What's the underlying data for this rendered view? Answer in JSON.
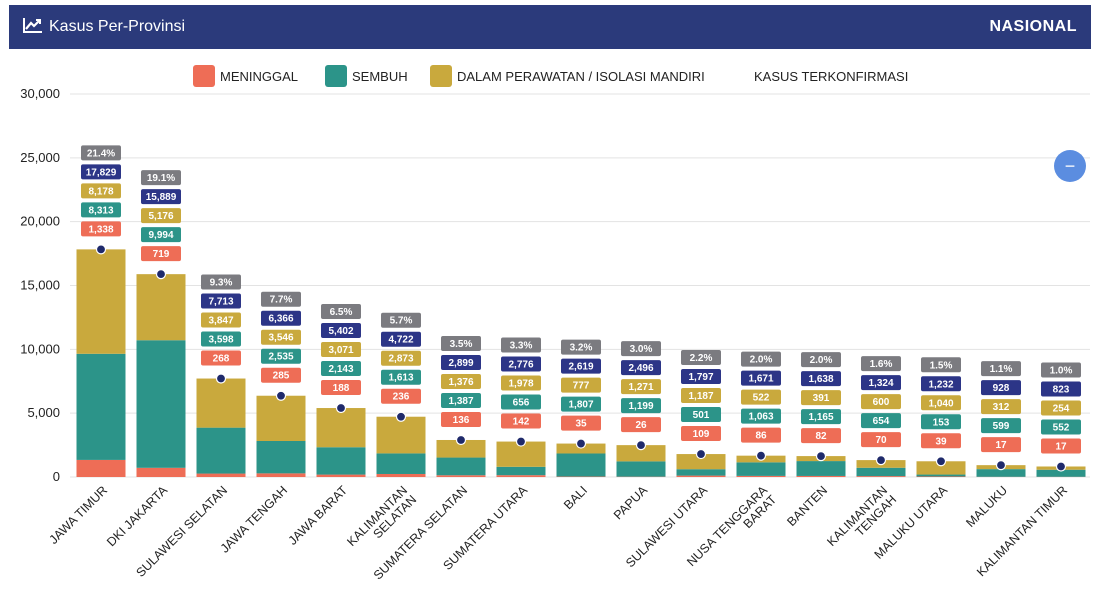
{
  "header": {
    "title": "Kasus Per-Provinsi",
    "scope": "NASIONAL",
    "icon": "line-chart-icon"
  },
  "zoom_button": {
    "label": "−",
    "icon": "minus-icon"
  },
  "colors": {
    "meninggal": "#ee6d56",
    "sembuh": "#2c9489",
    "perawatan": "#c9a93d",
    "konfirmasi": "#2c3587",
    "percent": "#7b7b80",
    "dot": "#1f2a6b",
    "header": "#2b3a7b"
  },
  "chart_data": {
    "type": "bar",
    "stacked": true,
    "title": "",
    "ylim": [
      0,
      30000
    ],
    "yticks": [
      {
        "value": 0,
        "label": "0"
      },
      {
        "value": 5000,
        "label": "5,000"
      },
      {
        "value": 10000,
        "label": "10,000"
      },
      {
        "value": 15000,
        "label": "15,000"
      },
      {
        "value": 20000,
        "label": "20,000"
      },
      {
        "value": 25000,
        "label": "25,000"
      },
      {
        "value": 30000,
        "label": "30,000"
      }
    ],
    "grid": true,
    "legend_position": "top-center",
    "legend": [
      {
        "name": "MENINGGAL",
        "color_key": "meninggal"
      },
      {
        "name": "SEMBUH",
        "color_key": "sembuh"
      },
      {
        "name": "DALAM PERAWATAN / ISOLASI MANDIRI",
        "color_key": "perawatan"
      },
      {
        "name": "KASUS TERKONFIRMASI",
        "color_key": ""
      }
    ],
    "categories": [
      "JAWA TIMUR",
      "DKI JAKARTA",
      "SULAWESI SELATAN",
      "JAWA TENGAH",
      "JAWA BARAT",
      "KALIMANTAN SELATAN",
      "SUMATERA SELATAN",
      "SUMATERA UTARA",
      "BALI",
      "PAPUA",
      "SULAWESI UTARA",
      "NUSA TENGGARA BARAT",
      "BANTEN",
      "KALIMANTAN TENGAH",
      "MALUKU UTARA",
      "MALUKU",
      "KALIMANTAN TIMUR"
    ],
    "category_lines": [
      [
        "JAWA TIMUR"
      ],
      [
        "DKI JAKARTA"
      ],
      [
        "SULAWESI SELATAN"
      ],
      [
        "JAWA TENGAH"
      ],
      [
        "JAWA BARAT"
      ],
      [
        "KALIMANTAN",
        "SELATAN"
      ],
      [
        "SUMATERA SELATAN"
      ],
      [
        "SUMATERA UTARA"
      ],
      [
        "BALI"
      ],
      [
        "PAPUA"
      ],
      [
        "SULAWESI UTARA"
      ],
      [
        "NUSA TENGGARA",
        "BARAT"
      ],
      [
        "BANTEN"
      ],
      [
        "KALIMANTAN",
        "TENGAH"
      ],
      [
        "MALUKU UTARA"
      ],
      [
        "MALUKU"
      ],
      [
        "KALIMANTAN TIMUR"
      ]
    ],
    "series": [
      {
        "name": "MENINGGAL",
        "values": [
          1338,
          719,
          268,
          285,
          188,
          236,
          136,
          142,
          35,
          26,
          109,
          86,
          82,
          70,
          39,
          17,
          17
        ]
      },
      {
        "name": "SEMBUH",
        "values": [
          8313,
          9994,
          3598,
          2535,
          2143,
          1613,
          1387,
          656,
          1807,
          1199,
          501,
          1063,
          1165,
          654,
          153,
          599,
          552
        ]
      },
      {
        "name": "DALAM PERAWATAN / ISOLASI MANDIRI",
        "values": [
          8178,
          5176,
          3847,
          3546,
          3071,
          2873,
          1376,
          1978,
          777,
          1271,
          1187,
          522,
          391,
          600,
          1040,
          312,
          254
        ]
      }
    ],
    "confirmed": [
      17829,
      15889,
      7713,
      6366,
      5402,
      4722,
      2899,
      2776,
      2619,
      2496,
      1797,
      1671,
      1638,
      1324,
      1232,
      928,
      823
    ],
    "percent": [
      "21.4%",
      "19.1%",
      "9.3%",
      "7.7%",
      "6.5%",
      "5.7%",
      "3.5%",
      "3.3%",
      "3.2%",
      "3.0%",
      "2.2%",
      "2.0%",
      "2.0%",
      "1.6%",
      "1.5%",
      "1.1%",
      "1.0%"
    ]
  }
}
